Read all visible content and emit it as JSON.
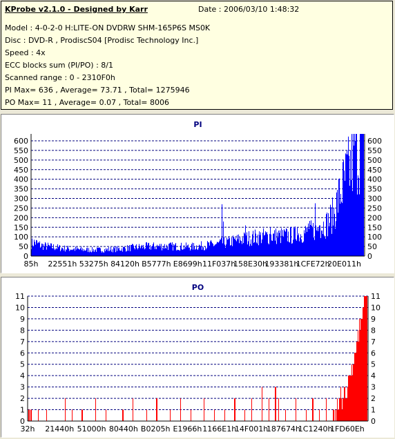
{
  "info": {
    "title": "KProbe v2.1.0 - Designed by Karr",
    "date": "Date : 2006/03/10 1:48:32",
    "model": "Model : 4-0-2-0 H:LITE-ON DVDRW SHM-165P6S MS0K",
    "disc": "Disc : DVD-R , ProdiscS04   [Prodisc Technology Inc.]",
    "speed": "Speed : 4x",
    "ecc": "ECC blocks sum (PI/PO) : 8/1",
    "range": "Scanned range : 0 - 2310F0h",
    "pi_summary": "PI Max= 636 , Average= 73.71 , Total= 1275946",
    "po_summary": "PO Max= 11 , Average= 0.07 , Total= 8006"
  },
  "colors": {
    "pi_bar": "#0000ff",
    "po_bar": "#ff0000",
    "grid": "#00007f",
    "info_bg": "#ffffe1"
  },
  "chart_data": [
    {
      "type": "bar",
      "title": "PI",
      "x_ticks": [
        "85h",
        "22551h",
        "53275h",
        "84120h",
        "B5777h",
        "E8699h",
        "11F037h",
        "158E30h",
        "193381h",
        "1CFE72h",
        "20E011h"
      ],
      "y_ticks": [
        0,
        50,
        100,
        150,
        200,
        250,
        300,
        350,
        400,
        450,
        500,
        550,
        600
      ],
      "ylim": [
        0,
        636
      ],
      "grid": true,
      "baseline_profile": [
        [
          0,
          65
        ],
        [
          0.01,
          72
        ],
        [
          0.03,
          55
        ],
        [
          0.06,
          48
        ],
        [
          0.1,
          40
        ],
        [
          0.14,
          35
        ],
        [
          0.18,
          32
        ],
        [
          0.22,
          33
        ],
        [
          0.27,
          38
        ],
        [
          0.31,
          45
        ],
        [
          0.35,
          50
        ],
        [
          0.4,
          52
        ],
        [
          0.44,
          50
        ],
        [
          0.48,
          48
        ],
        [
          0.52,
          55
        ],
        [
          0.56,
          62
        ],
        [
          0.6,
          75
        ],
        [
          0.64,
          90
        ],
        [
          0.68,
          100
        ],
        [
          0.72,
          105
        ],
        [
          0.76,
          105
        ],
        [
          0.8,
          110
        ],
        [
          0.84,
          130
        ],
        [
          0.87,
          150
        ],
        [
          0.89,
          170
        ],
        [
          0.91,
          220
        ],
        [
          0.93,
          330
        ],
        [
          0.95,
          420
        ],
        [
          0.97,
          500
        ],
        [
          0.985,
          560
        ],
        [
          1.0,
          580
        ]
      ],
      "spikes": [
        [
          0.573,
          270
        ],
        [
          0.578,
          180
        ],
        [
          0.645,
          160
        ],
        [
          0.72,
          150
        ],
        [
          0.752,
          140
        ],
        [
          0.8,
          150
        ],
        [
          0.833,
          170
        ],
        [
          0.855,
          275
        ],
        [
          0.868,
          160
        ],
        [
          0.95,
          550
        ],
        [
          0.975,
          600
        ],
        [
          0.99,
          636
        ]
      ]
    },
    {
      "type": "bar",
      "title": "PO",
      "x_ticks": [
        "32h",
        "21440h",
        "51000h",
        "80440h",
        "B0205h",
        "E1966h",
        "1166E1h",
        "14F001h",
        "187674h",
        "1C1240h",
        "1FD60Eh"
      ],
      "y_ticks": [
        0,
        1,
        2,
        3,
        4,
        5,
        6,
        7,
        8,
        9,
        10,
        11
      ],
      "ylim": [
        0,
        11
      ],
      "grid": true,
      "baseline_profile": [
        [
          0,
          1
        ],
        [
          0.02,
          0
        ],
        [
          0.89,
          0
        ],
        [
          0.91,
          1
        ],
        [
          0.93,
          2
        ],
        [
          0.95,
          4
        ],
        [
          0.97,
          7
        ],
        [
          0.985,
          10
        ],
        [
          1.0,
          11
        ]
      ],
      "spikes": [
        [
          0.01,
          1
        ],
        [
          0.03,
          1
        ],
        [
          0.055,
          1
        ],
        [
          0.11,
          2
        ],
        [
          0.13,
          1
        ],
        [
          0.16,
          1
        ],
        [
          0.2,
          2
        ],
        [
          0.23,
          1
        ],
        [
          0.28,
          1
        ],
        [
          0.31,
          2
        ],
        [
          0.35,
          1
        ],
        [
          0.38,
          2
        ],
        [
          0.42,
          1
        ],
        [
          0.45,
          2
        ],
        [
          0.48,
          1
        ],
        [
          0.52,
          2
        ],
        [
          0.55,
          1
        ],
        [
          0.58,
          1
        ],
        [
          0.61,
          2
        ],
        [
          0.64,
          1
        ],
        [
          0.66,
          2
        ],
        [
          0.69,
          3
        ],
        [
          0.71,
          2
        ],
        [
          0.73,
          3
        ],
        [
          0.74,
          2
        ],
        [
          0.76,
          1
        ],
        [
          0.79,
          2
        ],
        [
          0.82,
          1
        ],
        [
          0.84,
          2
        ],
        [
          0.86,
          1
        ],
        [
          0.88,
          2
        ]
      ]
    }
  ]
}
